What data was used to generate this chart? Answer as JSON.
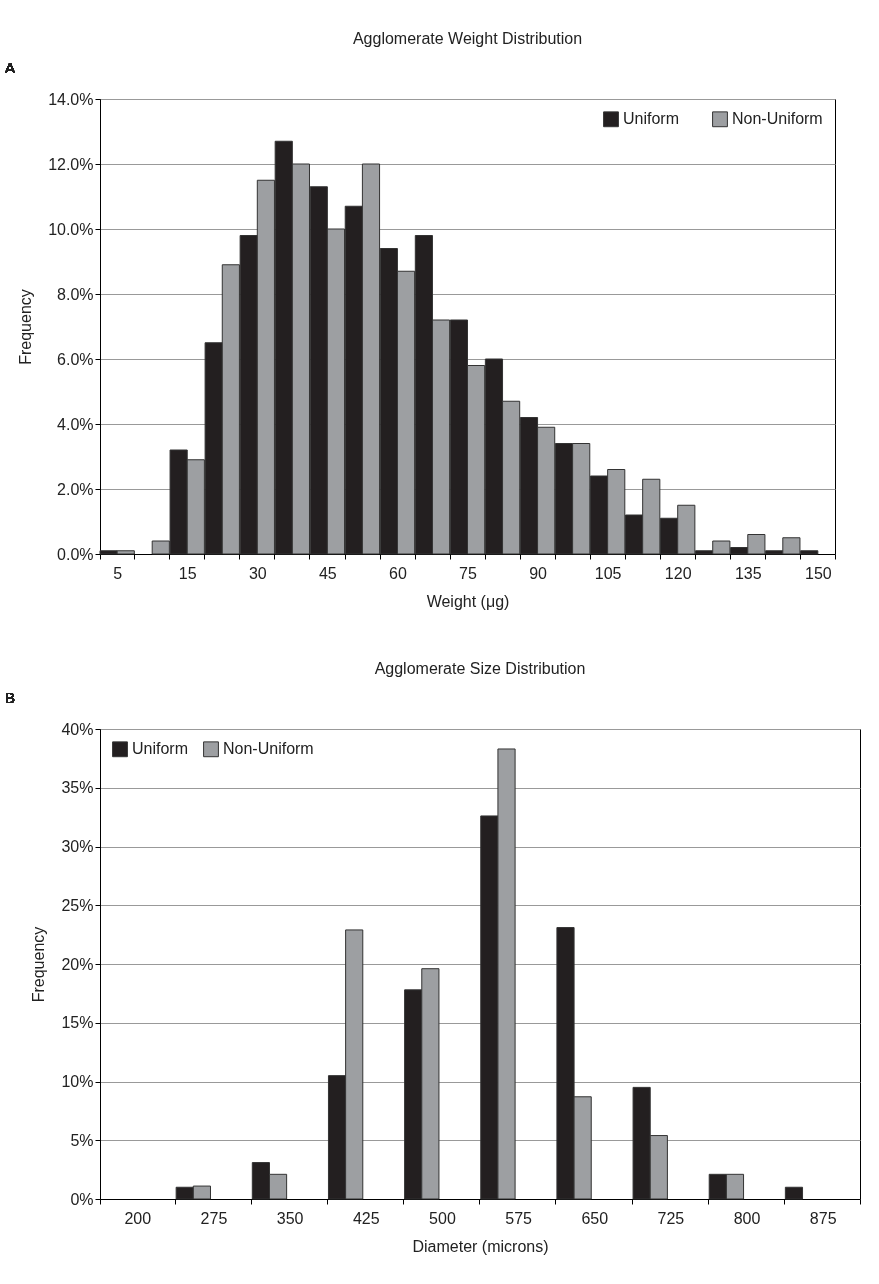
{
  "chart_data": [
    {
      "type": "bar",
      "title": "Agglomerate Weight Distribution",
      "xlabel": "Weight (μg)",
      "ylabel": "Frequency",
      "annotations": [
        "A"
      ],
      "categories": [
        "5",
        null,
        "15",
        null,
        "30",
        null,
        "45",
        null,
        "60",
        null,
        "75",
        null,
        "90",
        null,
        "105",
        null,
        "120",
        null,
        "135",
        null,
        "150"
      ],
      "series": [
        {
          "name": "Uniform",
          "color": "#231f20",
          "values": [
            0.1,
            0,
            3.2,
            6.5,
            9.8,
            12.7,
            11.3,
            10.7,
            9.4,
            9.8,
            7.2,
            6.0,
            4.2,
            3.4,
            2.4,
            1.2,
            1.1,
            0.1,
            0.2,
            0.1,
            0.1
          ]
        },
        {
          "name": "Non-Uniform",
          "color": "#9d9fa2",
          "values": [
            0.1,
            0.4,
            2.9,
            8.9,
            11.5,
            12.0,
            10.0,
            12.0,
            8.7,
            7.2,
            5.8,
            4.7,
            3.9,
            3.4,
            2.6,
            2.3,
            1.5,
            0.4,
            0.6,
            0.5,
            0
          ]
        }
      ],
      "ylim": [
        0,
        14
      ],
      "yticks": [
        {
          "value": 0,
          "label": "0.0%"
        },
        {
          "value": 2,
          "label": "2.0%"
        },
        {
          "value": 4,
          "label": "4.0%"
        },
        {
          "value": 6,
          "label": "6.0%"
        },
        {
          "value": 8,
          "label": "8.0%"
        },
        {
          "value": 10,
          "label": "10.0%"
        },
        {
          "value": 12,
          "label": "12.0%"
        },
        {
          "value": 14,
          "label": "14.0%"
        }
      ],
      "grid": "y",
      "legend": "top right"
    },
    {
      "type": "bar",
      "title": "Agglomerate Size Distribution",
      "xlabel": "Diameter (microns)",
      "ylabel": "Frequency",
      "annotations": [
        "B"
      ],
      "categories": [
        "200",
        "275",
        "350",
        "425",
        "500",
        "575",
        "650",
        "725",
        "800",
        "875"
      ],
      "series": [
        {
          "name": "Uniform",
          "color": "#231f20",
          "values": [
            0,
            1.0,
            3.1,
            10.5,
            17.8,
            32.6,
            23.1,
            9.5,
            2.1,
            1.0
          ]
        },
        {
          "name": "Non-Uniform",
          "color": "#9d9fa2",
          "values": [
            0,
            1.1,
            2.1,
            22.9,
            19.6,
            38.3,
            8.7,
            5.4,
            2.1,
            0
          ]
        }
      ],
      "ylim": [
        0,
        40
      ],
      "yticks": [
        {
          "value": 0,
          "label": "0%"
        },
        {
          "value": 5,
          "label": "5%"
        },
        {
          "value": 10,
          "label": "10%"
        },
        {
          "value": 15,
          "label": "15%"
        },
        {
          "value": 20,
          "label": "20%"
        },
        {
          "value": 25,
          "label": "25%"
        },
        {
          "value": 30,
          "label": "30%"
        },
        {
          "value": 35,
          "label": "35%"
        },
        {
          "value": 40,
          "label": "40%"
        }
      ],
      "grid": "y",
      "legend": "top left"
    }
  ]
}
